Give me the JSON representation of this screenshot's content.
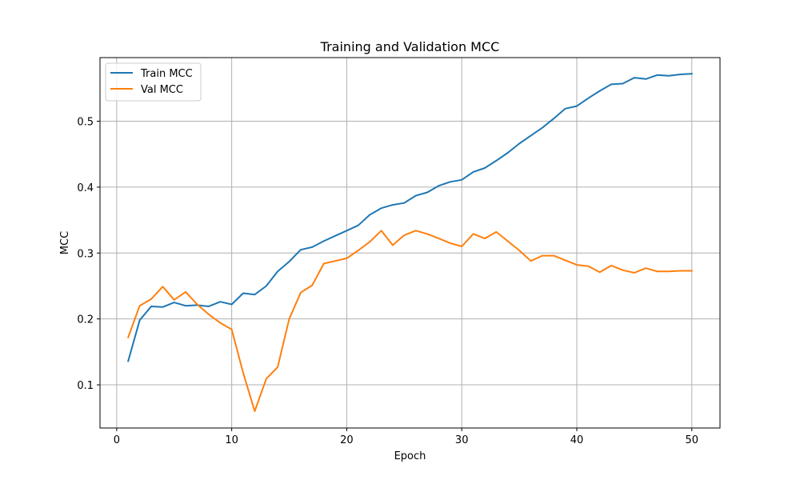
{
  "chart_data": {
    "type": "line",
    "title": "Training and Validation MCC",
    "xlabel": "Epoch",
    "ylabel": "MCC",
    "xlim": [
      -1.45,
      52.45
    ],
    "ylim": [
      0.0345,
      0.5965
    ],
    "xticks": [
      0,
      10,
      20,
      30,
      40,
      50
    ],
    "yticks": [
      0.1,
      0.2,
      0.3,
      0.4,
      0.5
    ],
    "ytick_labels": [
      "0.1",
      "0.2",
      "0.3",
      "0.4",
      "0.5"
    ],
    "grid": true,
    "legend_position": "top-left",
    "x": [
      1,
      2,
      3,
      4,
      5,
      6,
      7,
      8,
      9,
      10,
      11,
      12,
      13,
      14,
      15,
      16,
      17,
      18,
      19,
      20,
      21,
      22,
      23,
      24,
      25,
      26,
      27,
      28,
      29,
      30,
      31,
      32,
      33,
      34,
      35,
      36,
      37,
      38,
      39,
      40,
      41,
      42,
      43,
      44,
      45,
      46,
      47,
      48,
      49,
      50
    ],
    "series": [
      {
        "name": "Train MCC",
        "color": "#1f77b4",
        "values": [
          0.136,
          0.198,
          0.219,
          0.218,
          0.225,
          0.22,
          0.221,
          0.219,
          0.226,
          0.222,
          0.239,
          0.237,
          0.25,
          0.272,
          0.287,
          0.305,
          0.309,
          0.318,
          0.326,
          0.334,
          0.342,
          0.358,
          0.368,
          0.373,
          0.376,
          0.387,
          0.392,
          0.402,
          0.408,
          0.411,
          0.423,
          0.429,
          0.44,
          0.452,
          0.466,
          0.478,
          0.49,
          0.504,
          0.519,
          0.523,
          0.535,
          0.546,
          0.556,
          0.557,
          0.566,
          0.564,
          0.57,
          0.569,
          0.571,
          0.572
        ]
      },
      {
        "name": "Val MCC",
        "color": "#ff7f0e",
        "values": [
          0.172,
          0.22,
          0.23,
          0.249,
          0.229,
          0.241,
          0.222,
          0.207,
          0.194,
          0.184,
          0.118,
          0.06,
          0.109,
          0.127,
          0.2,
          0.24,
          0.251,
          0.284,
          0.288,
          0.292,
          0.304,
          0.317,
          0.334,
          0.312,
          0.327,
          0.334,
          0.329,
          0.322,
          0.315,
          0.31,
          0.329,
          0.322,
          0.332,
          0.318,
          0.304,
          0.288,
          0.296,
          0.296,
          0.289,
          0.282,
          0.28,
          0.271,
          0.281,
          0.274,
          0.27,
          0.277,
          0.272,
          0.272,
          0.273,
          0.273
        ]
      }
    ]
  }
}
